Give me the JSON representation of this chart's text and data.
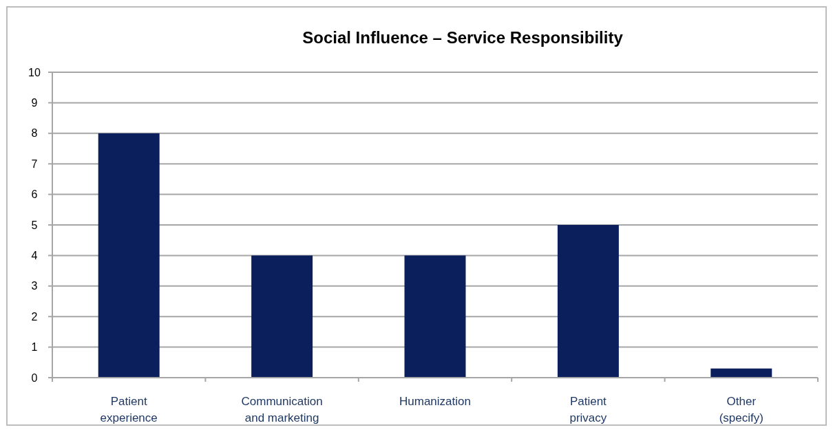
{
  "chart_data": {
    "type": "bar",
    "title": "Social Influence – Service Responsibility",
    "categories": [
      "Patient experience",
      "Communication and marketing",
      "Humanization",
      "Patient privacy",
      "Other (specify)"
    ],
    "values": [
      8,
      4,
      4,
      5,
      0.3
    ],
    "color": "#0a1f5c",
    "ylim": [
      0,
      10
    ],
    "yticks": [
      0,
      1,
      2,
      3,
      4,
      5,
      6,
      7,
      8,
      9,
      10
    ],
    "grid": "y"
  }
}
